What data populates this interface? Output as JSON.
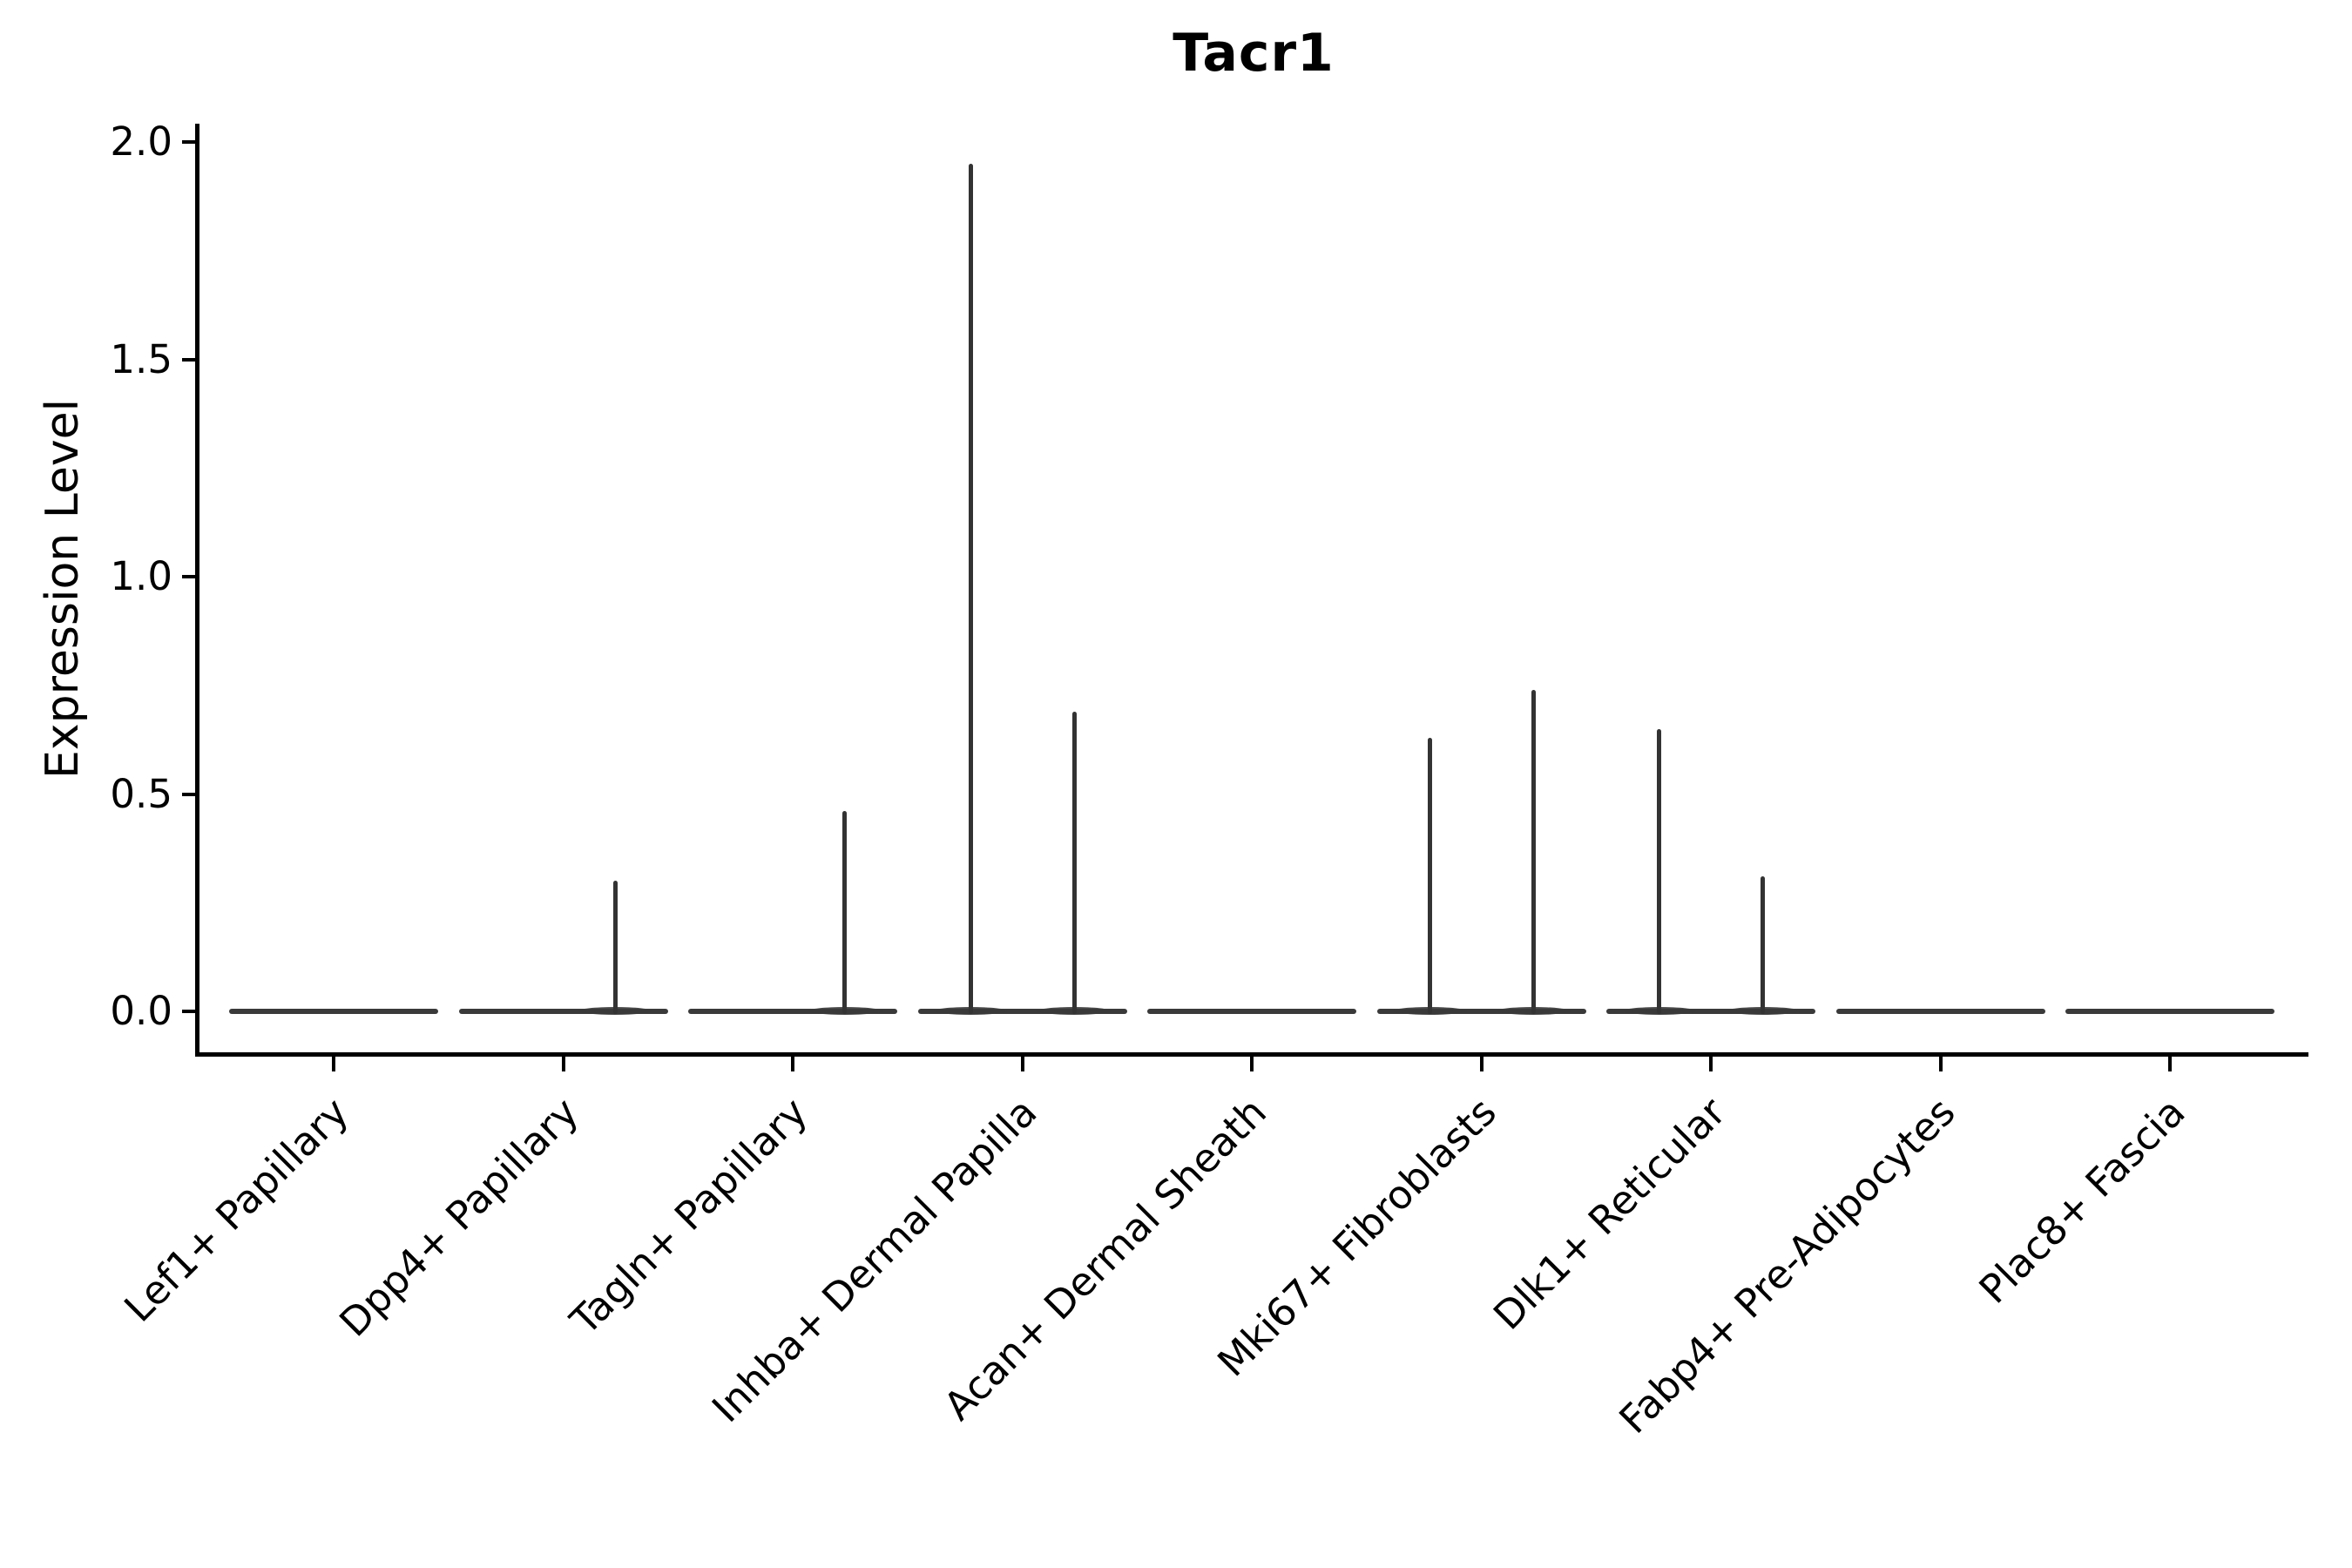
{
  "figure": {
    "background_color": "#ffffff"
  },
  "chart_data": {
    "type": "violin",
    "title": "Tacr1",
    "xlabel": "",
    "ylabel": "Expression Level",
    "ylim": [
      -0.1,
      2.05
    ],
    "yticks": [
      0.0,
      0.5,
      1.0,
      1.5,
      2.0
    ],
    "ytick_labels": [
      "0.0",
      "0.5",
      "1.0",
      "1.5",
      "2.0"
    ],
    "grid": false,
    "legend": false,
    "categories": [
      "Lef1+ Papillary",
      "Dpp4+ Papillary",
      "Tagln+ Papillary",
      "Inhba+ Dermal Papilla",
      "Acan+ Dermal Sheath",
      "Mki67+ Fibroblasts",
      "Dlk1+ Reticular",
      "Fabp4+ Pre-Adipocytes",
      "Plac8+ Fascia"
    ],
    "violins": [
      {
        "category": "Lef1+ Papillary",
        "baseline_value": 0.0,
        "spikes": []
      },
      {
        "category": "Dpp4+ Papillary",
        "baseline_value": 0.0,
        "spikes": [
          {
            "position": "right",
            "max_value": 0.3
          }
        ]
      },
      {
        "category": "Tagln+ Papillary",
        "baseline_value": 0.0,
        "spikes": [
          {
            "position": "right",
            "max_value": 0.46
          }
        ]
      },
      {
        "category": "Inhba+ Dermal Papilla",
        "baseline_value": 0.0,
        "spikes": [
          {
            "position": "left",
            "max_value": 1.95
          },
          {
            "position": "right",
            "max_value": 0.69
          }
        ]
      },
      {
        "category": "Acan+ Dermal Sheath",
        "baseline_value": 0.0,
        "spikes": []
      },
      {
        "category": "Mki67+ Fibroblasts",
        "baseline_value": 0.0,
        "spikes": [
          {
            "position": "left",
            "max_value": 0.63
          },
          {
            "position": "right",
            "max_value": 0.74
          }
        ]
      },
      {
        "category": "Dlk1+ Reticular",
        "baseline_value": 0.0,
        "spikes": [
          {
            "position": "left",
            "max_value": 0.65
          },
          {
            "position": "right",
            "max_value": 0.31
          }
        ]
      },
      {
        "category": "Fabp4+ Pre-Adipocytes",
        "baseline_value": 0.0,
        "spikes": []
      },
      {
        "category": "Plac8+ Fascia",
        "baseline_value": 0.0,
        "spikes": []
      }
    ],
    "colors": {
      "violin_line": "#3a3a3a",
      "spike_line": "#333333",
      "axis": "#000000",
      "text": "#000000"
    }
  }
}
